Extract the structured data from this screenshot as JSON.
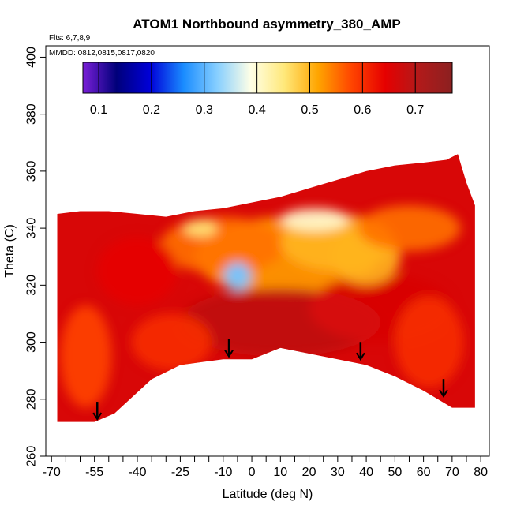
{
  "chart_data": {
    "type": "heatmap",
    "title": "ATOM1 Northbound asymmetry_380_AMP",
    "annotations": {
      "flights": "Flts: 6,7,8,9",
      "dates": "MMDD: 0812,0815,0817,0820"
    },
    "xlabel": "Latitude (deg N)",
    "ylabel": "Theta (C)",
    "xlim": [
      -72,
      83
    ],
    "ylim": [
      260,
      404
    ],
    "x_ticks": [
      -70,
      -55,
      -40,
      -25,
      -10,
      0,
      10,
      20,
      30,
      40,
      50,
      60,
      70,
      80
    ],
    "x_minor_ticks": [
      -65,
      -60,
      -50,
      -45,
      -35,
      -30,
      -20,
      -15,
      -5,
      5,
      15,
      25,
      35,
      45,
      55,
      65,
      75
    ],
    "x_tick_labels": [
      "-70",
      "-55",
      "-40",
      "-25",
      "-10",
      "0",
      "10",
      "20",
      "30",
      "40",
      "50",
      "60",
      "70",
      "80"
    ],
    "y_ticks": [
      260,
      280,
      300,
      320,
      340,
      360,
      380,
      400
    ],
    "y_tick_labels": [
      "260",
      "280",
      "300",
      "320",
      "340",
      "360",
      "380",
      "400"
    ],
    "grid": false,
    "colorbar": {
      "range": [
        0.07,
        0.77
      ],
      "ticks": [
        0.1,
        0.2,
        0.3,
        0.4,
        0.5,
        0.6,
        0.7
      ],
      "tick_labels": [
        "0.1",
        "0.2",
        "0.3",
        "0.4",
        "0.5",
        "0.6",
        "0.7"
      ],
      "colors": [
        "#7a1fd8",
        "#00007a",
        "#0000d8",
        "#1a8cff",
        "#87cfff",
        "#ffffe6",
        "#ffe87a",
        "#ffa500",
        "#ff4500",
        "#e60000",
        "#b21a1a",
        "#8b2020"
      ],
      "placement": "top-inside"
    },
    "domain_top": [
      [
        -68,
        345
      ],
      [
        -60,
        346
      ],
      [
        -50,
        346
      ],
      [
        -40,
        345
      ],
      [
        -30,
        344
      ],
      [
        -20,
        346
      ],
      [
        -10,
        347
      ],
      [
        0,
        349
      ],
      [
        10,
        351
      ],
      [
        20,
        354
      ],
      [
        30,
        357
      ],
      [
        40,
        360
      ],
      [
        50,
        362
      ],
      [
        60,
        363
      ],
      [
        68,
        364
      ],
      [
        72,
        366
      ],
      [
        75,
        356
      ],
      [
        78,
        348
      ]
    ],
    "domain_bottom": [
      [
        -68,
        272
      ],
      [
        -55,
        272
      ],
      [
        -48,
        275
      ],
      [
        -35,
        287
      ],
      [
        -25,
        292
      ],
      [
        -10,
        294
      ],
      [
        0,
        294
      ],
      [
        10,
        298
      ],
      [
        20,
        296
      ],
      [
        30,
        294
      ],
      [
        40,
        292
      ],
      [
        50,
        288
      ],
      [
        60,
        283
      ],
      [
        70,
        277
      ],
      [
        78,
        277
      ]
    ],
    "field_regions": [
      {
        "lat": 12,
        "theta": 330,
        "rx": 32,
        "ry": 14,
        "value": 0.52
      },
      {
        "lat": -10,
        "theta": 334,
        "rx": 22,
        "ry": 10,
        "value": 0.55
      },
      {
        "lat": 30,
        "theta": 335,
        "rx": 20,
        "ry": 10,
        "value": 0.5
      },
      {
        "lat": 10,
        "theta": 307,
        "rx": 35,
        "ry": 12,
        "value": 0.69
      },
      {
        "lat": 45,
        "theta": 312,
        "rx": 25,
        "ry": 12,
        "value": 0.66
      },
      {
        "lat": -58,
        "theta": 295,
        "rx": 9,
        "ry": 18,
        "value": 0.58
      },
      {
        "lat": -28,
        "theta": 300,
        "rx": 14,
        "ry": 10,
        "value": 0.6
      },
      {
        "lat": 62,
        "theta": 300,
        "rx": 12,
        "ry": 16,
        "value": 0.6
      },
      {
        "lat": -5,
        "theta": 324,
        "rx": 3,
        "ry": 3,
        "value": 0.25
      },
      {
        "lat": -5,
        "theta": 323,
        "rx": 5,
        "ry": 5,
        "value": 0.32
      },
      {
        "lat": 22,
        "theta": 343,
        "rx": 12,
        "ry": 4,
        "value": 0.4
      },
      {
        "lat": -18,
        "theta": 340,
        "rx": 6,
        "ry": 3,
        "value": 0.45
      },
      {
        "lat": 40,
        "theta": 330,
        "rx": 12,
        "ry": 10,
        "value": 0.5
      },
      {
        "lat": 55,
        "theta": 340,
        "rx": 18,
        "ry": 8,
        "value": 0.55
      },
      {
        "lat": -40,
        "theta": 325,
        "rx": 14,
        "ry": 12,
        "value": 0.64
      }
    ],
    "arrows": [
      {
        "lat": -54,
        "theta": 273
      },
      {
        "lat": -8,
        "theta": 295
      },
      {
        "lat": 38,
        "theta": 294
      },
      {
        "lat": 67,
        "theta": 281
      }
    ]
  }
}
